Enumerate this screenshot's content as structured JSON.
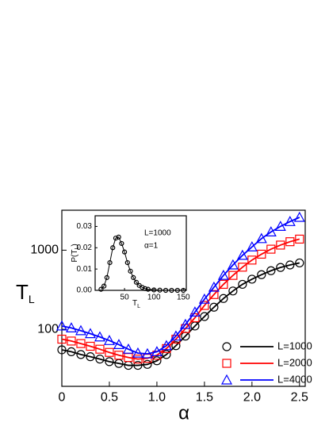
{
  "chart_data": [
    {
      "type": "line",
      "xlabel": "α",
      "ylabel": "T",
      "ylabel_sub": "L",
      "log_y": true,
      "legend": "lower right",
      "x": [
        0,
        0.1,
        0.2,
        0.3,
        0.4,
        0.5,
        0.6,
        0.7,
        0.8,
        0.9,
        1,
        1.1,
        1.2,
        1.3,
        1.4,
        1.5,
        1.6,
        1.7,
        1.8,
        1.9,
        2,
        2.1,
        2.2,
        2.3,
        2.4,
        2.5
      ],
      "series": [
        {
          "name": "L=1000",
          "color": "#000000",
          "marker": "circle",
          "values": [
            55,
            52,
            48,
            45,
            42,
            39,
            37,
            35,
            35,
            36,
            40,
            48,
            62,
            82,
            110,
            145,
            190,
            245,
            305,
            370,
            430,
            490,
            550,
            605,
            650,
            690
          ]
        },
        {
          "name": "L=2000",
          "color": "#ff0000",
          "marker": "square",
          "values": [
            75,
            71,
            66,
            61,
            56,
            51,
            47,
            44,
            42,
            43,
            47,
            57,
            75,
            102,
            140,
            200,
            275,
            370,
            480,
            610,
            750,
            890,
            1030,
            1160,
            1280,
            1380
          ]
        },
        {
          "name": "L=4000",
          "color": "#0000ff",
          "marker": "triangle",
          "values": [
            110,
            104,
            96,
            88,
            80,
            72,
            64,
            56,
            50,
            49,
            52,
            62,
            82,
            115,
            165,
            240,
            340,
            480,
            650,
            860,
            1100,
            1400,
            1700,
            2000,
            2300,
            2600
          ]
        }
      ],
      "xlim": [
        0,
        2.56
      ],
      "ylim": [
        19,
        3200
      ],
      "xticks": [
        0,
        0.5,
        {
          "value": 1,
          "label": "1.0"
        },
        1.5,
        {
          "value": 2,
          "label": "2.0"
        },
        2.5
      ],
      "yticks": [
        100,
        1000
      ]
    },
    {
      "type": "line",
      "xlabel": "T",
      "xlabel_sub": "L",
      "ylabel": "P(T",
      "ylabel_sub": "L",
      "ylabel_end": ")",
      "annotations": [
        "L=1000",
        "α=1"
      ],
      "x": [
        10,
        15,
        20,
        25,
        30,
        35,
        40,
        45,
        50,
        55,
        60,
        65,
        70,
        75,
        80,
        85,
        90,
        100,
        110,
        120,
        130,
        140,
        150
      ],
      "series": [
        {
          "color": "#000000",
          "marker": "circle",
          "values": [
            0.0005,
            0.002,
            0.006,
            0.013,
            0.02,
            0.0245,
            0.025,
            0.022,
            0.018,
            0.013,
            0.009,
            0.006,
            0.0038,
            0.0023,
            0.0014,
            0.0008,
            0.0005,
            0.0002,
            0.0001,
            0,
            0,
            0,
            0
          ]
        }
      ],
      "xlim": [
        0,
        155
      ],
      "ylim": [
        0,
        0.035
      ],
      "xticks": [
        50,
        100,
        150
      ],
      "yticks": [
        {
          "value": 0,
          "label": "0.00"
        },
        0.01,
        0.02,
        0.03
      ]
    }
  ]
}
